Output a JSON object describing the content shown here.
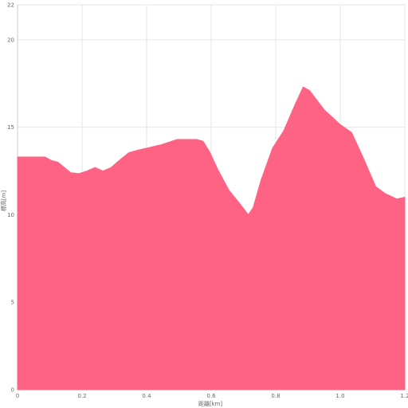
{
  "chart_data": {
    "type": "area",
    "title": "",
    "xlabel": "距離[km]",
    "ylabel": "標高[m]",
    "xlim": [
      0,
      1.2
    ],
    "ylim": [
      0,
      22
    ],
    "x_ticks": [
      "0",
      "0.2",
      "0.4",
      "0.6",
      "0.8",
      "1.0",
      "1.2"
    ],
    "y_ticks": [
      "0",
      "5",
      "10",
      "15",
      "20",
      "22"
    ],
    "grid": true,
    "legend": "none",
    "series": [
      {
        "color": "#ff6384",
        "points": [
          [
            0.0,
            13.3
          ],
          [
            0.085,
            13.3
          ],
          [
            0.105,
            13.1
          ],
          [
            0.125,
            13.0
          ],
          [
            0.145,
            12.7
          ],
          [
            0.165,
            12.4
          ],
          [
            0.19,
            12.35
          ],
          [
            0.215,
            12.5
          ],
          [
            0.24,
            12.7
          ],
          [
            0.265,
            12.5
          ],
          [
            0.29,
            12.7
          ],
          [
            0.315,
            13.1
          ],
          [
            0.345,
            13.55
          ],
          [
            0.375,
            13.7
          ],
          [
            0.41,
            13.85
          ],
          [
            0.445,
            14.0
          ],
          [
            0.495,
            14.3
          ],
          [
            0.555,
            14.3
          ],
          [
            0.575,
            14.2
          ],
          [
            0.595,
            13.6
          ],
          [
            0.62,
            12.6
          ],
          [
            0.655,
            11.4
          ],
          [
            0.69,
            10.6
          ],
          [
            0.715,
            10.0
          ],
          [
            0.73,
            10.4
          ],
          [
            0.755,
            12.0
          ],
          [
            0.79,
            13.8
          ],
          [
            0.825,
            14.8
          ],
          [
            0.86,
            16.3
          ],
          [
            0.885,
            17.3
          ],
          [
            0.905,
            17.1
          ],
          [
            0.95,
            16.0
          ],
          [
            1.0,
            15.15
          ],
          [
            1.035,
            14.7
          ],
          [
            1.07,
            13.3
          ],
          [
            1.11,
            11.6
          ],
          [
            1.14,
            11.2
          ],
          [
            1.175,
            10.9
          ],
          [
            1.2,
            11.0
          ]
        ]
      }
    ]
  }
}
